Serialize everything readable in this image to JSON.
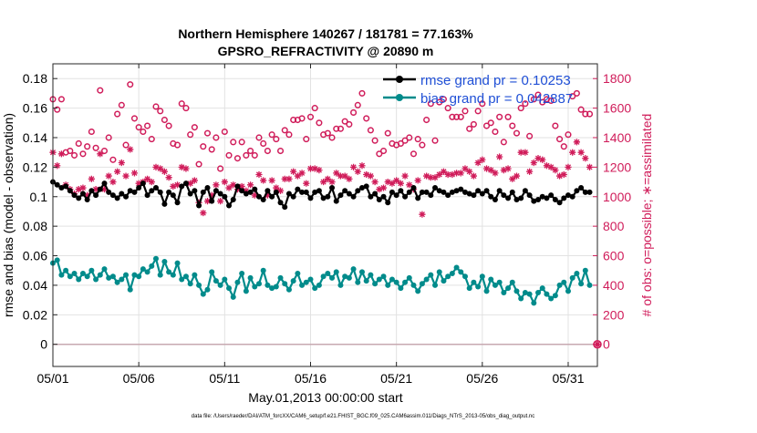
{
  "chart_data": {
    "type": "line",
    "title": "Northern Hemisphere 140267 / 181781 = 77.163%",
    "subtitle": "GPSRO_REFRACTIVITY @ 20890 m",
    "xlabel": "May.01,2013 00:00:00 start",
    "ylabel_left": "rmse and bias (model - observation)",
    "ylabel_right": "# of obs: o=possible; ∗=assimilated",
    "footer": "data file: /Users/raeder/DAI/ATM_forcXX/CAM6_setup/f.e21.FHIST_BGC.f09_025.CAM6assim.011/Diags_NTrS_2013-05/obs_diag_output.nc",
    "x_range": [
      0,
      31.7
    ],
    "x_tick_values": [
      0,
      5,
      10,
      15,
      20,
      25,
      30
    ],
    "x_tick_labels": [
      "05/01",
      "05/06",
      "05/11",
      "05/16",
      "05/21",
      "05/26",
      "05/31"
    ],
    "ylim_left": [
      -0.015,
      0.19
    ],
    "y_ticks_left": [
      0,
      0.02,
      0.04,
      0.06,
      0.08,
      0.1,
      0.12,
      0.14,
      0.16,
      0.18
    ],
    "y_tick_labels_left": [
      "0",
      "0.02",
      "0.04",
      "0.06",
      "0.08",
      "0.1",
      "0.12",
      "0.14",
      "0.16",
      "0.18"
    ],
    "ylim_right": [
      -150,
      1900
    ],
    "y_ticks_right": [
      0,
      200,
      400,
      600,
      800,
      1000,
      1200,
      1400,
      1600,
      1800
    ],
    "y_tick_labels_right": [
      "0",
      "200",
      "400",
      "600",
      "800",
      "1000",
      "1200",
      "1400",
      "1600",
      "1800"
    ],
    "grid": true,
    "legend_position": "top-right",
    "series": [
      {
        "name": "rmse grand pr = 0.10253",
        "axis": "left",
        "color": "#000000",
        "marker": "filled-circle",
        "x": [
          0,
          0.25,
          0.5,
          0.75,
          1,
          1.25,
          1.5,
          1.75,
          2,
          2.25,
          2.5,
          2.75,
          3,
          3.25,
          3.5,
          3.75,
          4,
          4.25,
          4.5,
          4.75,
          5,
          5.25,
          5.5,
          5.75,
          6,
          6.25,
          6.5,
          6.75,
          7,
          7.25,
          7.5,
          7.75,
          8,
          8.25,
          8.5,
          8.75,
          9,
          9.25,
          9.5,
          9.75,
          10,
          10.25,
          10.5,
          10.75,
          11,
          11.25,
          11.5,
          11.75,
          12,
          12.25,
          12.5,
          12.75,
          13,
          13.25,
          13.5,
          13.75,
          14,
          14.25,
          14.5,
          14.75,
          15,
          15.25,
          15.5,
          15.75,
          16,
          16.25,
          16.5,
          16.75,
          17,
          17.25,
          17.5,
          17.75,
          18,
          18.25,
          18.5,
          18.75,
          19,
          19.25,
          19.5,
          19.75,
          20,
          20.25,
          20.5,
          20.75,
          21,
          21.25,
          21.5,
          21.75,
          22,
          22.25,
          22.5,
          22.75,
          23,
          23.25,
          23.5,
          23.75,
          24,
          24.25,
          24.5,
          24.75,
          25,
          25.25,
          25.5,
          25.75,
          26,
          26.25,
          26.5,
          26.75,
          27,
          27.25,
          27.5,
          27.75,
          28,
          28.25,
          28.5,
          28.75,
          29,
          29.25,
          29.5,
          29.75,
          30,
          30.25,
          30.5,
          30.75,
          31,
          31.25
        ],
        "y": [
          0.11,
          0.108,
          0.106,
          0.107,
          0.104,
          0.101,
          0.099,
          0.102,
          0.098,
          0.104,
          0.101,
          0.105,
          0.109,
          0.103,
          0.101,
          0.099,
          0.102,
          0.1,
          0.104,
          0.103,
          0.106,
          0.109,
          0.101,
          0.104,
          0.106,
          0.103,
          0.095,
          0.103,
          0.101,
          0.096,
          0.107,
          0.109,
          0.102,
          0.104,
          0.094,
          0.103,
          0.106,
          0.097,
          0.104,
          0.102,
          0.1,
          0.094,
          0.098,
          0.107,
          0.104,
          0.102,
          0.103,
          0.105,
          0.1,
          0.098,
          0.104,
          0.1,
          0.103,
          0.096,
          0.093,
          0.102,
          0.1,
          0.105,
          0.103,
          0.103,
          0.099,
          0.103,
          0.104,
          0.099,
          0.1,
          0.106,
          0.097,
          0.101,
          0.104,
          0.102,
          0.1,
          0.104,
          0.106,
          0.107,
          0.1,
          0.102,
          0.098,
          0.1,
          0.096,
          0.103,
          0.101,
          0.104,
          0.1,
          0.103,
          0.106,
          0.099,
          0.103,
          0.103,
          0.101,
          0.106,
          0.104,
          0.103,
          0.101,
          0.103,
          0.104,
          0.105,
          0.103,
          0.102,
          0.101,
          0.104,
          0.102,
          0.104,
          0.1,
          0.098,
          0.104,
          0.101,
          0.099,
          0.103,
          0.098,
          0.099,
          0.104,
          0.101,
          0.097,
          0.098,
          0.1,
          0.099,
          0.101,
          0.098,
          0.096,
          0.099,
          0.101,
          0.1,
          0.104,
          0.106,
          0.103,
          0.103
        ]
      },
      {
        "name": "bias grand pr = 0.042887",
        "axis": "left",
        "color": "#008b8b",
        "marker": "filled-circle",
        "x": [
          0,
          0.25,
          0.5,
          0.75,
          1,
          1.25,
          1.5,
          1.75,
          2,
          2.25,
          2.5,
          2.75,
          3,
          3.25,
          3.5,
          3.75,
          4,
          4.25,
          4.5,
          4.75,
          5,
          5.25,
          5.5,
          5.75,
          6,
          6.25,
          6.5,
          6.75,
          7,
          7.25,
          7.5,
          7.75,
          8,
          8.25,
          8.5,
          8.75,
          9,
          9.25,
          9.5,
          9.75,
          10,
          10.25,
          10.5,
          10.75,
          11,
          11.25,
          11.5,
          11.75,
          12,
          12.25,
          12.5,
          12.75,
          13,
          13.25,
          13.5,
          13.75,
          14,
          14.25,
          14.5,
          14.75,
          15,
          15.25,
          15.5,
          15.75,
          16,
          16.25,
          16.5,
          16.75,
          17,
          17.25,
          17.5,
          17.75,
          18,
          18.25,
          18.5,
          18.75,
          19,
          19.25,
          19.5,
          19.75,
          20,
          20.25,
          20.5,
          20.75,
          21,
          21.25,
          21.5,
          21.75,
          22,
          22.25,
          22.5,
          22.75,
          23,
          23.25,
          23.5,
          23.75,
          24,
          24.25,
          24.5,
          24.75,
          25,
          25.25,
          25.5,
          25.75,
          26,
          26.25,
          26.5,
          26.75,
          27,
          27.25,
          27.5,
          27.75,
          28,
          28.25,
          28.5,
          28.75,
          29,
          29.25,
          29.5,
          29.75,
          30,
          30.25,
          30.5,
          30.75,
          31,
          31.25
        ],
        "y": [
          0.055,
          0.057,
          0.047,
          0.05,
          0.046,
          0.048,
          0.044,
          0.048,
          0.046,
          0.05,
          0.044,
          0.047,
          0.051,
          0.045,
          0.046,
          0.042,
          0.044,
          0.047,
          0.037,
          0.047,
          0.046,
          0.051,
          0.049,
          0.053,
          0.058,
          0.047,
          0.056,
          0.049,
          0.047,
          0.055,
          0.044,
          0.046,
          0.041,
          0.047,
          0.04,
          0.034,
          0.037,
          0.049,
          0.043,
          0.04,
          0.044,
          0.038,
          0.032,
          0.042,
          0.048,
          0.036,
          0.045,
          0.039,
          0.041,
          0.05,
          0.04,
          0.038,
          0.039,
          0.045,
          0.041,
          0.037,
          0.043,
          0.048,
          0.04,
          0.042,
          0.044,
          0.038,
          0.04,
          0.046,
          0.048,
          0.045,
          0.049,
          0.04,
          0.046,
          0.045,
          0.051,
          0.042,
          0.049,
          0.043,
          0.047,
          0.041,
          0.044,
          0.046,
          0.04,
          0.044,
          0.042,
          0.038,
          0.042,
          0.045,
          0.04,
          0.036,
          0.041,
          0.044,
          0.047,
          0.04,
          0.049,
          0.043,
          0.046,
          0.048,
          0.052,
          0.049,
          0.046,
          0.038,
          0.042,
          0.039,
          0.046,
          0.036,
          0.044,
          0.04,
          0.042,
          0.035,
          0.038,
          0.042,
          0.036,
          0.031,
          0.035,
          0.034,
          0.028,
          0.035,
          0.038,
          0.034,
          0.031,
          0.033,
          0.04,
          0.042,
          0.036,
          0.045,
          0.048,
          0.041,
          0.05,
          0.04
        ]
      },
      {
        "name": "possible",
        "axis": "right",
        "color": "#d01c5a",
        "marker": "open-circle",
        "x": [
          0,
          0.25,
          0.5,
          0.75,
          1,
          1.25,
          1.5,
          1.75,
          2,
          2.25,
          2.5,
          2.75,
          3,
          3.25,
          3.5,
          3.75,
          4,
          4.25,
          4.5,
          4.75,
          5,
          5.25,
          5.5,
          5.75,
          6,
          6.25,
          6.5,
          6.75,
          7,
          7.25,
          7.5,
          7.75,
          8,
          8.25,
          8.5,
          8.75,
          9,
          9.25,
          9.5,
          9.75,
          10,
          10.25,
          10.5,
          10.75,
          11,
          11.25,
          11.5,
          11.75,
          12,
          12.25,
          12.5,
          12.75,
          13,
          13.25,
          13.5,
          13.75,
          14,
          14.25,
          14.5,
          14.75,
          15,
          15.25,
          15.5,
          15.75,
          16,
          16.25,
          16.5,
          16.75,
          17,
          17.25,
          17.5,
          17.75,
          18,
          18.25,
          18.5,
          18.75,
          19,
          19.25,
          19.5,
          19.75,
          20,
          20.25,
          20.5,
          20.75,
          21,
          21.25,
          21.5,
          21.75,
          22,
          22.25,
          22.5,
          22.75,
          23,
          23.25,
          23.5,
          23.75,
          24,
          24.25,
          24.5,
          24.75,
          25,
          25.25,
          25.5,
          25.75,
          26,
          26.25,
          26.5,
          26.75,
          27,
          27.25,
          27.5,
          27.75,
          28,
          28.25,
          28.5,
          28.75,
          29,
          29.25,
          29.5,
          29.75,
          30,
          30.25,
          30.5,
          30.75,
          31,
          31.25
        ],
        "y": [
          1660,
          1590,
          1660,
          1300,
          1310,
          1280,
          1360,
          1290,
          1340,
          1440,
          1330,
          1720,
          1310,
          1400,
          1250,
          1560,
          1620,
          1350,
          1760,
          1530,
          1470,
          1440,
          1480,
          1390,
          1610,
          1580,
          1520,
          1480,
          1360,
          1350,
          1630,
          1600,
          1420,
          1470,
          1220,
          1340,
          1430,
          1320,
          1400,
          1190,
          1440,
          1280,
          1370,
          1260,
          1370,
          1280,
          1310,
          1280,
          1400,
          1360,
          1310,
          1420,
          1390,
          1310,
          1450,
          1420,
          1520,
          1520,
          1530,
          1390,
          1540,
          1600,
          1500,
          1420,
          1430,
          1400,
          1460,
          1460,
          1510,
          1490,
          1570,
          1620,
          1700,
          1530,
          1450,
          1380,
          1290,
          1310,
          1430,
          1360,
          1350,
          1360,
          1380,
          1400,
          1290,
          1390,
          1350,
          1520,
          1630,
          1380,
          1640,
          1660,
          1600,
          1540,
          1540,
          1540,
          1580,
          1460,
          1490,
          1580,
          1630,
          1480,
          1500,
          1440,
          1540,
          1370,
          1540,
          1480,
          1430,
          1600,
          1630,
          1410,
          1660,
          1690,
          1640,
          1660,
          1650,
          1480,
          1390,
          1340,
          1420,
          1680,
          1700,
          1590,
          1560,
          1560
        ]
      },
      {
        "name": "assimilated",
        "axis": "right",
        "color": "#d01c5a",
        "marker": "asterisk",
        "x": [
          0,
          0.25,
          0.5,
          0.75,
          1,
          1.25,
          1.5,
          1.75,
          2,
          2.25,
          2.5,
          2.75,
          3,
          3.25,
          3.5,
          3.75,
          4,
          4.25,
          4.5,
          4.75,
          5,
          5.25,
          5.5,
          5.75,
          6,
          6.25,
          6.5,
          6.75,
          7,
          7.25,
          7.5,
          7.75,
          8,
          8.25,
          8.5,
          8.75,
          9,
          9.25,
          9.5,
          9.75,
          10,
          10.25,
          10.5,
          10.75,
          11,
          11.25,
          11.5,
          11.75,
          12,
          12.25,
          12.5,
          12.75,
          13,
          13.25,
          13.5,
          13.75,
          14,
          14.25,
          14.5,
          14.75,
          15,
          15.25,
          15.5,
          15.75,
          16,
          16.25,
          16.5,
          16.75,
          17,
          17.25,
          17.5,
          17.75,
          18,
          18.25,
          18.5,
          18.75,
          19,
          19.25,
          19.5,
          19.75,
          20,
          20.25,
          20.5,
          20.75,
          21,
          21.25,
          21.5,
          21.75,
          22,
          22.25,
          22.5,
          22.75,
          23,
          23.25,
          23.5,
          23.75,
          24,
          24.25,
          24.5,
          24.75,
          25,
          25.25,
          25.5,
          25.75,
          26,
          26.25,
          26.5,
          26.75,
          27,
          27.25,
          27.5,
          27.75,
          28,
          28.25,
          28.5,
          28.75,
          29,
          29.25,
          29.5,
          29.75,
          30,
          30.25,
          30.5,
          30.75,
          31,
          31.25
        ],
        "y": [
          1300,
          1210,
          1290,
          1080,
          1050,
          1020,
          1050,
          1060,
          1010,
          1120,
          1050,
          1290,
          1050,
          1140,
          1100,
          1170,
          1230,
          1140,
          1320,
          1160,
          1090,
          1100,
          1120,
          1100,
          1200,
          1190,
          1170,
          1130,
          1070,
          1080,
          1200,
          1190,
          1090,
          1110,
          960,
          890,
          970,
          1010,
          1080,
          970,
          1100,
          1060,
          1080,
          1050,
          1070,
          1040,
          1080,
          1010,
          1150,
          1110,
          1010,
          1110,
          1060,
          1040,
          1120,
          1120,
          1170,
          1140,
          1160,
          1090,
          1190,
          1190,
          1180,
          1100,
          1120,
          1100,
          1160,
          1140,
          1140,
          1120,
          1200,
          1170,
          1210,
          1150,
          1140,
          1100,
          1050,
          1060,
          1100,
          1090,
          1110,
          1090,
          1140,
          1080,
          1050,
          1110,
          880,
          1140,
          1130,
          1130,
          1150,
          1170,
          1150,
          1150,
          1160,
          1160,
          1190,
          1170,
          1140,
          1230,
          1250,
          1190,
          1180,
          1160,
          1270,
          1180,
          1190,
          1120,
          1140,
          1300,
          1300,
          1170,
          1230,
          1260,
          1250,
          1210,
          1200,
          1180,
          1140,
          1150,
          1200,
          1300,
          1370,
          1300,
          1260,
          1200
        ]
      }
    ]
  }
}
